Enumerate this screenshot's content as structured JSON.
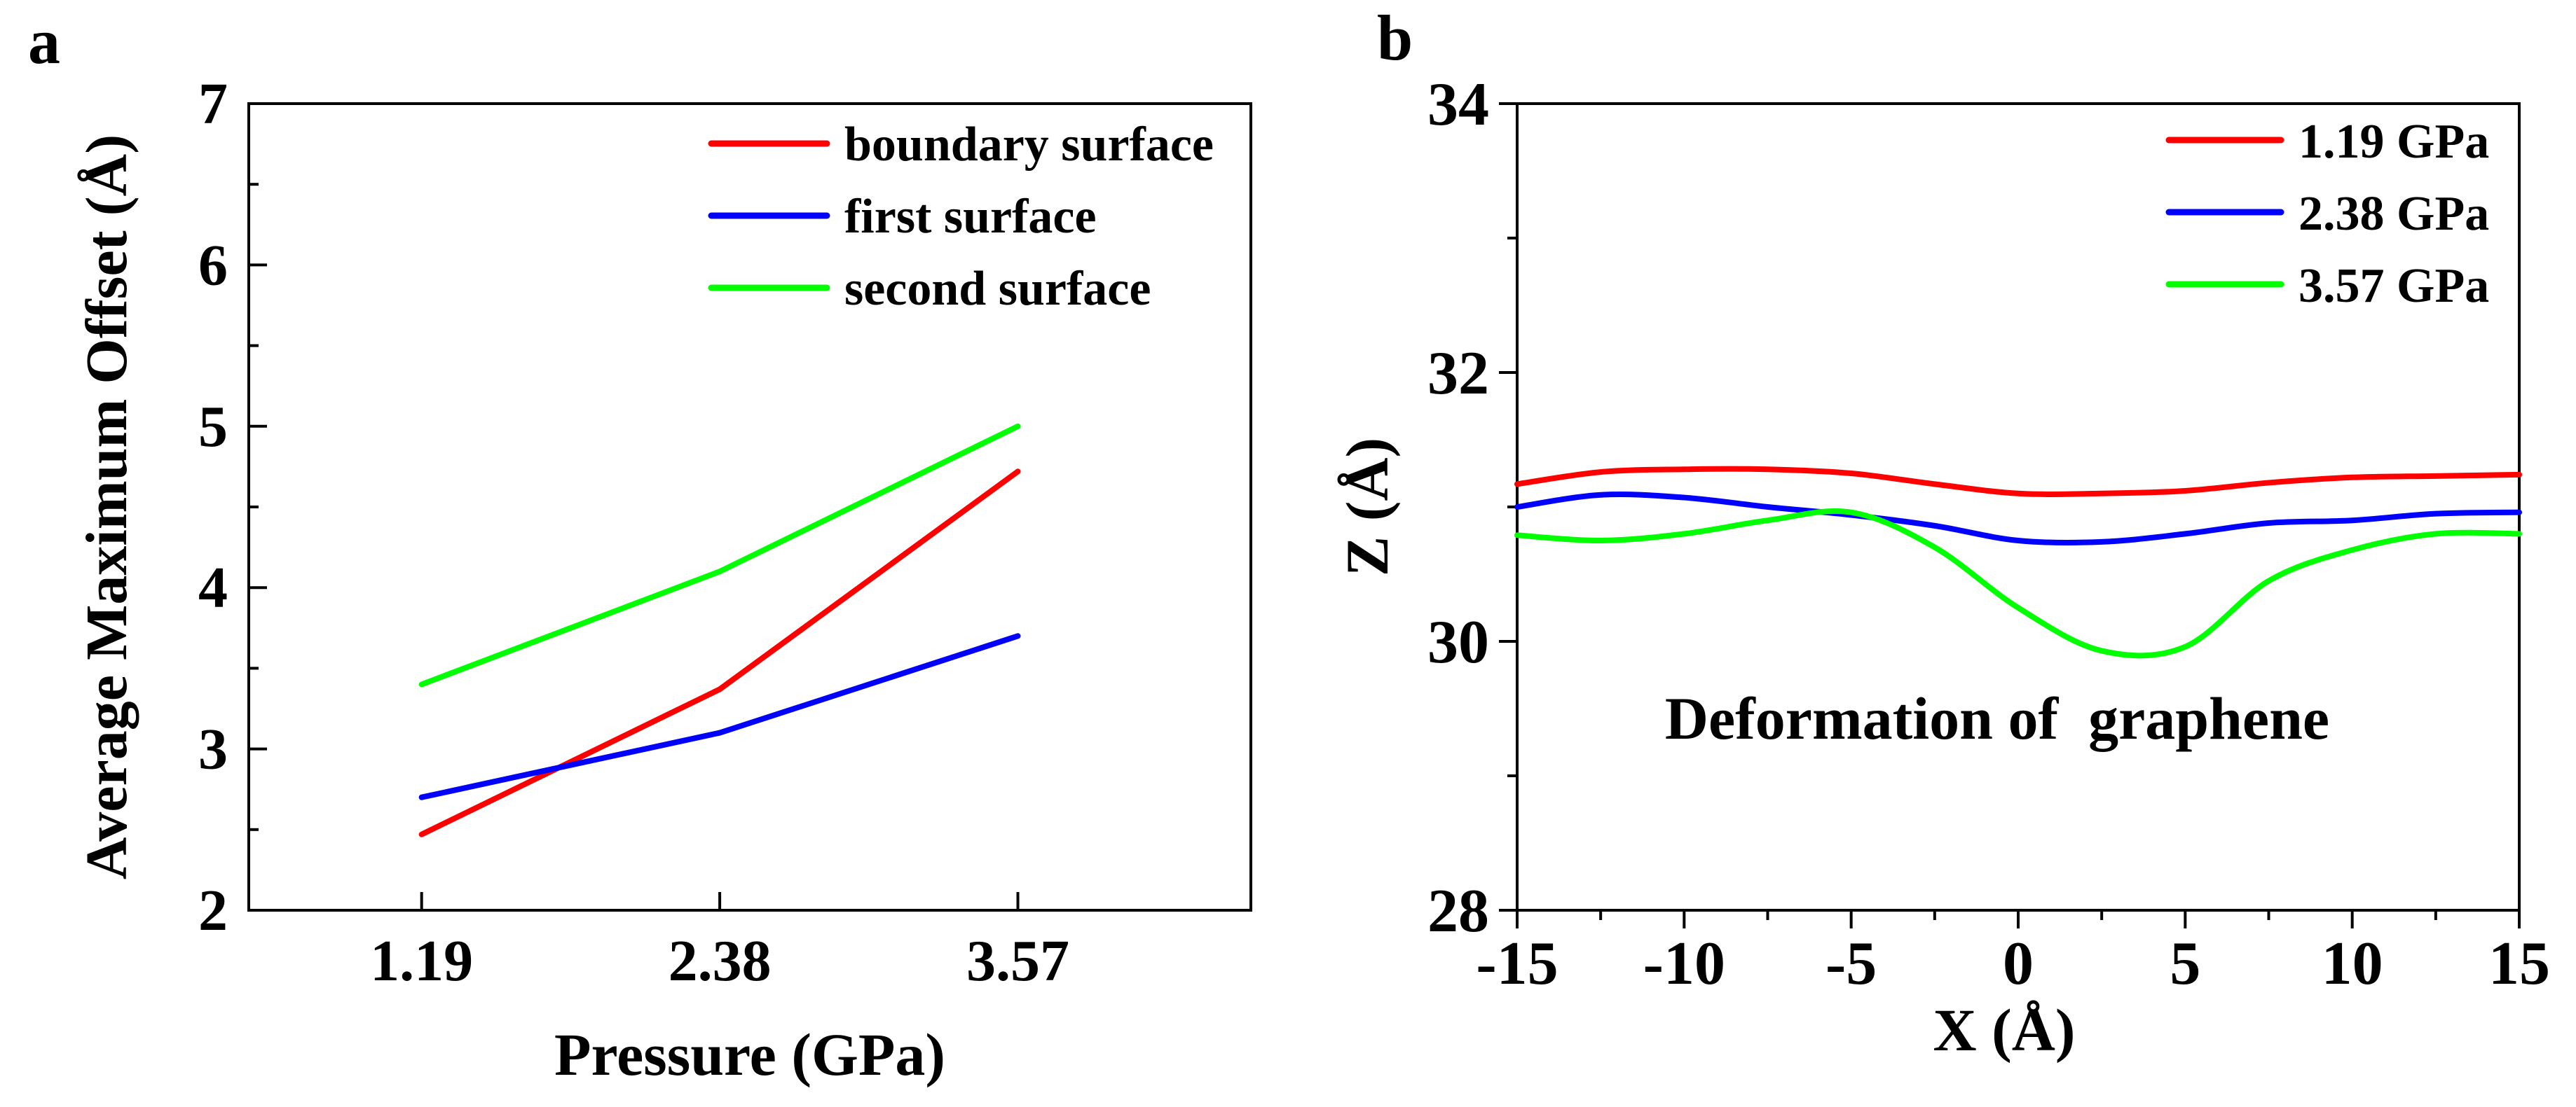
{
  "panel_labels": [
    "a",
    "b"
  ],
  "chart_data": [
    {
      "id": "a",
      "type": "line",
      "title": "",
      "xlabel": "Pressure (GPa)",
      "ylabel": "Average Maximum Offset (Å)",
      "categories": [
        "1.19",
        "2.38",
        "3.57"
      ],
      "x": [
        1.19,
        2.38,
        3.57
      ],
      "xlim": [
        0.5,
        4.5
      ],
      "ylim": [
        2,
        7
      ],
      "yticks": [
        2,
        3,
        4,
        5,
        6,
        7
      ],
      "grid": false,
      "legend_position": "top-right",
      "series": [
        {
          "name": "boundary surface",
          "color": "#ff0000",
          "values": [
            2.47,
            3.37,
            4.72
          ]
        },
        {
          "name": "first surface",
          "color": "#0000ff",
          "values": [
            2.7,
            3.1,
            3.7
          ]
        },
        {
          "name": "second surface",
          "color": "#00ff00",
          "values": [
            3.4,
            4.1,
            5.0
          ]
        }
      ]
    },
    {
      "id": "b",
      "type": "line",
      "title": "",
      "xlabel": "X (Å)",
      "ylabel": "Z (Å)",
      "xlim": [
        -15,
        15
      ],
      "ylim": [
        28,
        34
      ],
      "xticks": [
        -15,
        -10,
        -5,
        0,
        5,
        10,
        15
      ],
      "yticks": [
        28,
        30,
        32,
        34
      ],
      "grid": false,
      "legend_position": "top-right",
      "annotation": "Deformation of  graphene",
      "x": [
        -15,
        -12.5,
        -10,
        -7.5,
        -5,
        -2.5,
        0,
        2.5,
        5,
        7.5,
        10,
        12.5,
        15
      ],
      "series": [
        {
          "name": "1.19 GPa",
          "color": "#ff0000",
          "values": [
            31.17,
            31.26,
            31.28,
            31.28,
            31.25,
            31.17,
            31.1,
            31.1,
            31.12,
            31.18,
            31.22,
            31.23,
            31.24
          ]
        },
        {
          "name": "2.38 GPa",
          "color": "#0000ff",
          "values": [
            31.0,
            31.09,
            31.07,
            31.0,
            30.94,
            30.86,
            30.75,
            30.74,
            30.8,
            30.88,
            30.9,
            30.95,
            30.96
          ]
        },
        {
          "name": "3.57 GPa",
          "color": "#00ff00",
          "values": [
            30.79,
            30.75,
            30.8,
            30.9,
            30.96,
            30.7,
            30.25,
            29.93,
            29.96,
            30.45,
            30.68,
            30.8,
            30.8
          ]
        }
      ]
    }
  ]
}
